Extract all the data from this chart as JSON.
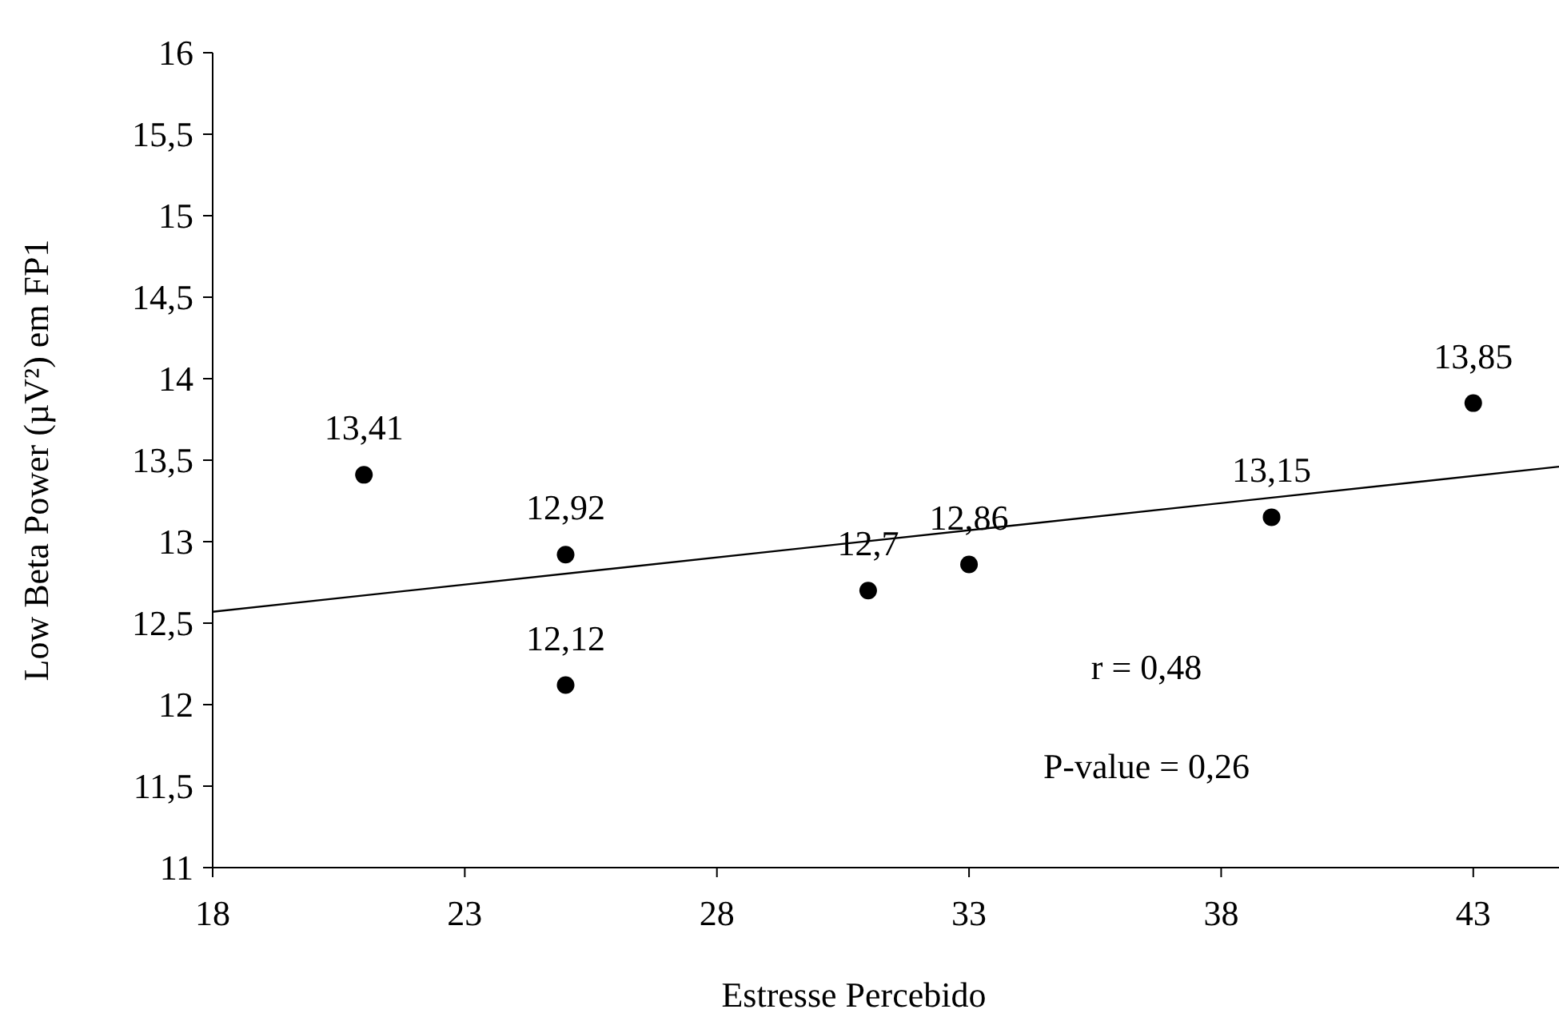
{
  "chart_data": {
    "type": "scatter",
    "xlabel": "Estresse Percebido",
    "ylabel": "Low Beta Power (µV²) em FP1",
    "xlim": [
      18,
      44.7
    ],
    "xticks": [
      18,
      23,
      28,
      33,
      38,
      43
    ],
    "ylim": [
      11,
      16
    ],
    "yticks": [
      11,
      {
        "value": 11.5,
        "label": "11,5"
      },
      12,
      {
        "value": 12.5,
        "label": "12,5"
      },
      13,
      {
        "value": 13.5,
        "label": "13,5"
      },
      14,
      {
        "value": 14.5,
        "label": "14,5"
      },
      15,
      {
        "value": 15.5,
        "label": "15,5"
      },
      16
    ],
    "grid": false,
    "marker": "circle",
    "series": [
      {
        "color": "#000000",
        "x": [
          21,
          25,
          25,
          31,
          33,
          39,
          43
        ],
        "values": [
          13.41,
          12.92,
          12.12,
          12.7,
          12.86,
          13.15,
          13.85
        ],
        "value_labels": [
          "13,41",
          "12,92",
          "12,12",
          "12,7",
          "12,86",
          "13,15",
          "13,85"
        ]
      },
      {
        "type": "line",
        "color": "#000000",
        "x": [
          18,
          44.7
        ],
        "values": [
          12.57,
          13.46
        ],
        "line_style": "solid",
        "marker": "none"
      }
    ],
    "annotations": [
      "r = 0,48",
      "P-value = 0,26"
    ]
  }
}
